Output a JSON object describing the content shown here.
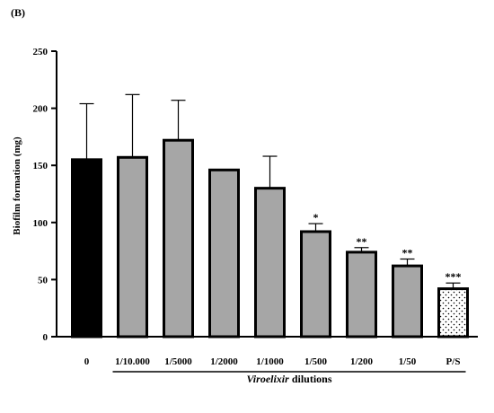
{
  "panel_label": "(B)",
  "chart_data": {
    "type": "bar",
    "ylabel": "Biofilm formation (mg)",
    "xlabel_italic": "Viroelixir",
    "xlabel_rest": " dilutions",
    "ylim": [
      0,
      250
    ],
    "yticks": [
      0,
      50,
      100,
      150,
      200,
      250
    ],
    "categories": [
      "0",
      "1/10.000",
      "1/5000",
      "1/2000",
      "1/1000",
      "1/500",
      "1/200",
      "1/50",
      "P/S"
    ],
    "values": [
      155,
      157,
      172,
      146,
      130,
      92,
      74,
      62,
      42
    ],
    "error": [
      49,
      55,
      35,
      0,
      28,
      7,
      4,
      6,
      5
    ],
    "significance": [
      "",
      "",
      "",
      "",
      "",
      "*",
      "**",
      "**",
      "***"
    ],
    "bar_fills": [
      "solid-black",
      "gray",
      "gray",
      "gray",
      "gray",
      "gray",
      "gray",
      "gray",
      "dotted-white"
    ],
    "colors": {
      "black": "#000000",
      "gray": "#a6a6a6",
      "white": "#ffffff"
    },
    "grid": false,
    "legend": "none"
  }
}
